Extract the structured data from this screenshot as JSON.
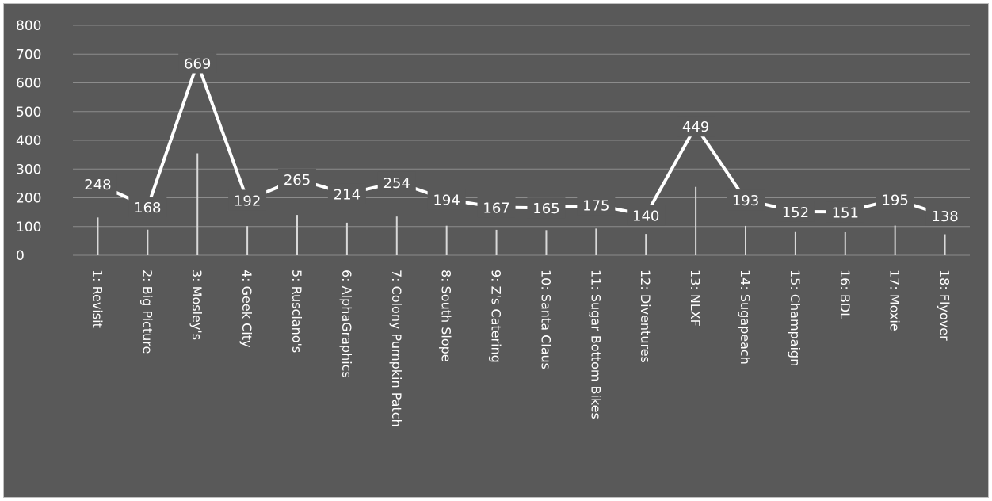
{
  "chart_data": {
    "type": "line",
    "title": "",
    "xlabel": "",
    "ylabel": "",
    "ylim": [
      0,
      800
    ],
    "yticks": [
      0,
      100,
      200,
      300,
      400,
      500,
      600,
      700,
      800
    ],
    "ytick_labels": [
      "0",
      "100",
      "200",
      "300",
      "400",
      "500",
      "600",
      "700",
      "800"
    ],
    "grid": true,
    "legend": "none",
    "categories": [
      "1: Revisit",
      "2: Big Picture",
      "3: Mosley's",
      "4: Geek City",
      "5: Rusciano's",
      "6: AlphaGraphics",
      "7: Colony Pumpkin Patch",
      "8: South Slope",
      "9: Z's Catering",
      "10: Santa Claus",
      "11: Sugar Bottom Bikes",
      "12: Diventures",
      "13: NLXF",
      "14: Sugapeach",
      "15: Champaign",
      "16: BDL",
      "17: Moxie",
      "18: Flyover"
    ],
    "series": [
      {
        "values": [
          248,
          168,
          669,
          192,
          265,
          214,
          254,
          194,
          167,
          165,
          175,
          140,
          449,
          193,
          152,
          151,
          195,
          138
        ],
        "data_labels": [
          "248",
          "168",
          "669",
          "192",
          "265",
          "214",
          "254",
          "194",
          "167",
          "165",
          "175",
          "140",
          "449",
          "193",
          "152",
          "151",
          "195",
          "138"
        ]
      }
    ],
    "colors": {
      "background": "#595959",
      "line": "#ffffff",
      "grid": "#8c8c8c",
      "text": "#ffffff"
    }
  }
}
